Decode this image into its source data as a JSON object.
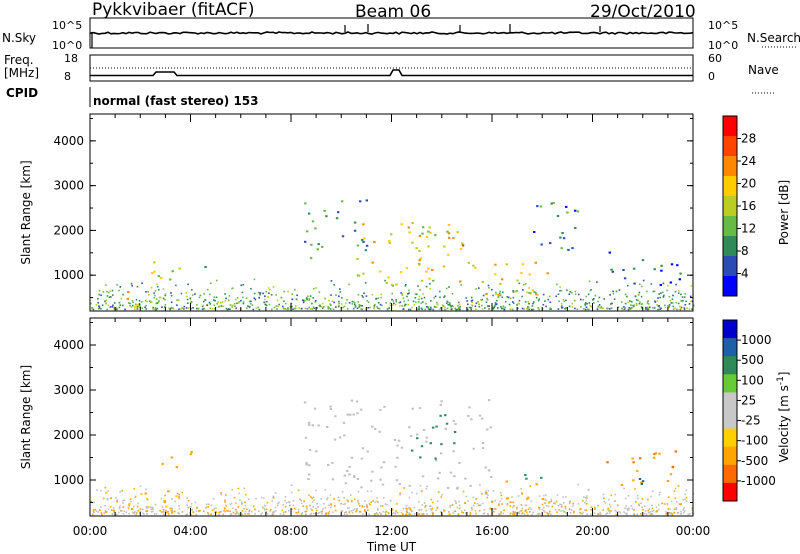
{
  "header": {
    "station": "Pykkvibaer (fitACF)",
    "beam": "Beam 06",
    "date": "29/Oct/2010"
  },
  "top_panels": {
    "nsky_label": "N.Sky",
    "nsearch_label": "N.Search",
    "nsky_ticks": [
      "10^5",
      "10^0"
    ],
    "nsearch_ticks": [
      "10^5",
      "10^0"
    ],
    "freq_label_1": "Freq.",
    "freq_label_2": "[MHz]",
    "freq_ticks": [
      "18",
      "8"
    ],
    "nave_label": "Nave",
    "nave_ticks": [
      "60",
      "0"
    ],
    "cpid_label": "CPID",
    "cpid_text": "normal (fast stereo) 153"
  },
  "colors": {
    "power_scale": [
      "#0000ff",
      "#2b4cb3",
      "#2e8b57",
      "#66bb44",
      "#bbcc22",
      "#ffcc00",
      "#ff8800",
      "#ff4400",
      "#ff0000"
    ],
    "velocity_scale": [
      "#ff0000",
      "#ff6a00",
      "#ffa500",
      "#ffd000",
      "#c8c8c8",
      "#c8c8c8",
      "#66cc33",
      "#2e8b57",
      "#1d5fa8",
      "#0000cc"
    ],
    "ground_scatter": "#c0c0c0"
  },
  "chart_data": [
    {
      "type": "heatmap",
      "panel": "power",
      "ylabel": "Slant Range [km]",
      "colorbar_label": "Power [dB]",
      "colorbar_ticks": [
        "28",
        "24",
        "20",
        "16",
        "12",
        "8",
        "4"
      ],
      "yticks": [
        "4000",
        "3000",
        "2000",
        "1000"
      ],
      "ylim": [
        200,
        4600
      ],
      "xlim": [
        0,
        24
      ],
      "xticks": [
        "00:00",
        "04:00",
        "08:00",
        "12:00",
        "16:00",
        "20:00",
        "00:00"
      ],
      "xlabel": "Time UT",
      "features": [
        {
          "t0": 1.0,
          "t1": 3.0,
          "r0": 350,
          "r1": 700,
          "level": 26
        },
        {
          "t0": 2.2,
          "t1": 4.5,
          "r0": 900,
          "r1": 1400,
          "level": 22
        },
        {
          "t0": 4.5,
          "t1": 5.0,
          "r0": 1000,
          "r1": 1400,
          "level": 10
        },
        {
          "t0": 8.5,
          "t1": 11.0,
          "r0": 1400,
          "r1": 2800,
          "level": 14
        },
        {
          "t0": 10.5,
          "t1": 15.0,
          "r0": 800,
          "r1": 2200,
          "level": 24
        },
        {
          "t0": 13.0,
          "t1": 15.5,
          "r0": 1100,
          "r1": 2000,
          "level": 28
        },
        {
          "t0": 15.5,
          "t1": 18.5,
          "r0": 500,
          "r1": 1300,
          "level": 26
        },
        {
          "t0": 17.5,
          "t1": 19.5,
          "r0": 1400,
          "r1": 2700,
          "level": 12
        },
        {
          "t0": 20.5,
          "t1": 23.5,
          "r0": 800,
          "r1": 1600,
          "level": 10
        }
      ]
    },
    {
      "type": "heatmap",
      "panel": "velocity",
      "ylabel": "Slant Range [km]",
      "colorbar_label": "Velocity [m s^-1]",
      "colorbar_ticks": [
        "1000",
        "500",
        "100",
        "25",
        "-25",
        "-100",
        "-500",
        "-1000"
      ],
      "yticks": [
        "4000",
        "3000",
        "2000",
        "1000"
      ],
      "ylim": [
        200,
        4600
      ],
      "xlim": [
        0,
        24
      ],
      "xticks": [
        "00:00",
        "04:00",
        "08:00",
        "12:00",
        "16:00",
        "20:00",
        "00:00"
      ],
      "xlabel": "Time UT",
      "features": [
        {
          "t0": 0.5,
          "t1": 3.5,
          "r0": 300,
          "r1": 800,
          "vel": -150
        },
        {
          "t0": 2.5,
          "t1": 4.0,
          "r0": 1300,
          "r1": 1800,
          "vel": -300
        },
        {
          "t0": 8.5,
          "t1": 16.0,
          "r0": 800,
          "r1": 2800,
          "vel": 0
        },
        {
          "t0": 12.5,
          "t1": 14.5,
          "r0": 1500,
          "r1": 2500,
          "vel": 300
        },
        {
          "t0": 15.5,
          "t1": 18.0,
          "r0": 500,
          "r1": 1000,
          "vel": -200
        },
        {
          "t0": 17.0,
          "t1": 18.5,
          "r0": 1000,
          "r1": 1300,
          "vel": 150
        },
        {
          "t0": 20.5,
          "t1": 23.5,
          "r0": 900,
          "r1": 1700,
          "vel": -400
        },
        {
          "t0": 21.0,
          "t1": 23.0,
          "r0": 900,
          "r1": 1100,
          "vel": 600
        }
      ]
    }
  ]
}
